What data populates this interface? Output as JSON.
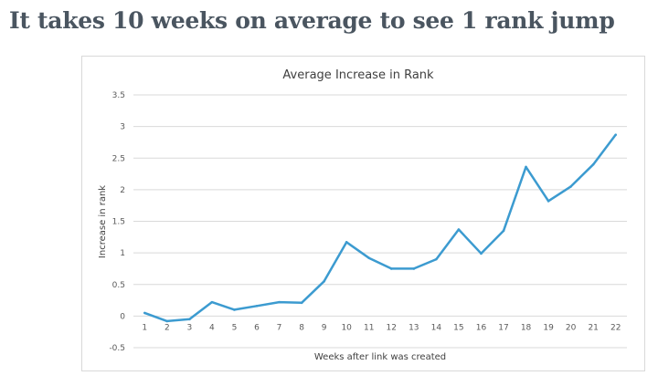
{
  "headline": "It takes 10 weeks on average to see 1 rank jump",
  "chart_data": {
    "type": "line",
    "title": "Average Increase in Rank",
    "xlabel": "Weeks after link was created",
    "ylabel": "Increase in rank",
    "categories": [
      "1",
      "2",
      "3",
      "4",
      "5",
      "6",
      "7",
      "8",
      "9",
      "10",
      "11",
      "12",
      "13",
      "14",
      "15",
      "16",
      "17",
      "18",
      "19",
      "20",
      "21",
      "22"
    ],
    "series": [
      {
        "values": [
          0.05,
          -0.08,
          -0.05,
          0.22,
          0.1,
          0.16,
          0.22,
          0.21,
          0.55,
          1.17,
          0.92,
          0.75,
          0.75,
          0.9,
          1.37,
          0.99,
          1.35,
          2.36,
          1.82,
          2.05,
          2.4,
          2.87
        ],
        "color": "#3c9bd0"
      }
    ],
    "ylim": [
      -0.5,
      3.5
    ],
    "yticks": [
      "3.5",
      "3",
      "2.5",
      "2",
      "1.5",
      "1",
      "0.5",
      "0",
      "-0.5"
    ],
    "grid": true,
    "legend": "none"
  }
}
